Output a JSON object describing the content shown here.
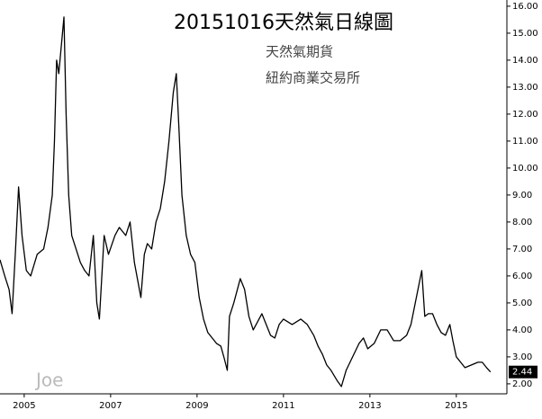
{
  "chart_data": {
    "type": "line",
    "title": "20151016天然氣日線圖",
    "subtitle": "天然氣期貨",
    "annotation": "紐約商業交易所",
    "watermark": "Joe",
    "color": "#000000",
    "x": [
      2004.44,
      2004.55,
      2004.65,
      2004.72,
      2004.8,
      2004.87,
      2004.95,
      2005.05,
      2005.15,
      2005.3,
      2005.45,
      2005.55,
      2005.65,
      2005.7,
      2005.75,
      2005.8,
      2005.92,
      2005.97,
      2006.03,
      2006.1,
      2006.2,
      2006.3,
      2006.4,
      2006.5,
      2006.6,
      2006.68,
      2006.74,
      2006.85,
      2006.95,
      2007.1,
      2007.2,
      2007.35,
      2007.45,
      2007.55,
      2007.7,
      2007.78,
      2007.85,
      2007.95,
      2008.05,
      2008.15,
      2008.25,
      2008.35,
      2008.45,
      2008.52,
      2008.58,
      2008.65,
      2008.75,
      2008.85,
      2008.95,
      2009.05,
      2009.15,
      2009.25,
      2009.35,
      2009.45,
      2009.55,
      2009.62,
      2009.7,
      2009.75,
      2009.85,
      2009.95,
      2010.0,
      2010.1,
      2010.2,
      2010.3,
      2010.4,
      2010.5,
      2010.6,
      2010.7,
      2010.8,
      2010.9,
      2011.0,
      2011.2,
      2011.4,
      2011.55,
      2011.7,
      2011.8,
      2011.9,
      2012.0,
      2012.1,
      2012.25,
      2012.34,
      2012.45,
      2012.6,
      2012.75,
      2012.85,
      2012.95,
      2013.1,
      2013.25,
      2013.4,
      2013.55,
      2013.7,
      2013.85,
      2013.95,
      2014.05,
      2014.2,
      2014.27,
      2014.35,
      2014.45,
      2014.55,
      2014.65,
      2014.75,
      2014.85,
      2014.92,
      2015.0,
      2015.1,
      2015.2,
      2015.35,
      2015.5,
      2015.6,
      2015.7,
      2015.79
    ],
    "values": [
      6.6,
      6.0,
      5.5,
      4.6,
      7.0,
      9.3,
      7.5,
      6.2,
      6.0,
      6.8,
      7.0,
      7.8,
      9.0,
      11.0,
      14.0,
      13.5,
      15.6,
      12.0,
      9.0,
      7.5,
      7.0,
      6.5,
      6.2,
      6.0,
      7.5,
      5.0,
      4.4,
      7.5,
      6.8,
      7.5,
      7.8,
      7.5,
      8.0,
      6.5,
      5.2,
      6.8,
      7.2,
      7.0,
      8.0,
      8.5,
      9.5,
      11.0,
      12.8,
      13.5,
      11.5,
      9.0,
      7.5,
      6.8,
      6.5,
      5.2,
      4.4,
      3.9,
      3.7,
      3.5,
      3.4,
      3.0,
      2.5,
      4.5,
      5.0,
      5.6,
      5.9,
      5.5,
      4.5,
      4.0,
      4.3,
      4.6,
      4.2,
      3.8,
      3.7,
      4.2,
      4.4,
      4.2,
      4.4,
      4.2,
      3.8,
      3.4,
      3.1,
      2.7,
      2.5,
      2.1,
      1.9,
      2.5,
      3.0,
      3.5,
      3.7,
      3.3,
      3.5,
      4.0,
      4.0,
      3.6,
      3.6,
      3.8,
      4.2,
      5.0,
      6.2,
      4.5,
      4.6,
      4.6,
      4.2,
      3.9,
      3.8,
      4.2,
      3.6,
      3.0,
      2.8,
      2.6,
      2.7,
      2.8,
      2.8,
      2.6,
      2.44
    ],
    "last_value": {
      "value": 2.44,
      "label": "2.44"
    },
    "xlim": [
      2004.44,
      2016.17
    ],
    "xticks": [
      2005,
      2007,
      2009,
      2011,
      2013,
      2015
    ],
    "ylim": [
      1.63,
      16.23
    ],
    "yticks": [
      {
        "value": 2,
        "label": "2.00"
      },
      {
        "value": 3,
        "label": "3.00"
      },
      {
        "value": 4,
        "label": "4.00"
      },
      {
        "value": 5,
        "label": "5.00"
      },
      {
        "value": 6,
        "label": "6.00"
      },
      {
        "value": 7,
        "label": "7.00"
      },
      {
        "value": 8,
        "label": "8.00"
      },
      {
        "value": 9,
        "label": "9.00"
      },
      {
        "value": 10,
        "label": "10.00"
      },
      {
        "value": 11,
        "label": "11.00"
      },
      {
        "value": 12,
        "label": "12.00"
      },
      {
        "value": 13,
        "label": "13.00"
      },
      {
        "value": 14,
        "label": "14.00"
      },
      {
        "value": 15,
        "label": "15.00"
      },
      {
        "value": 16,
        "label": "16.00"
      }
    ],
    "grid": false
  }
}
